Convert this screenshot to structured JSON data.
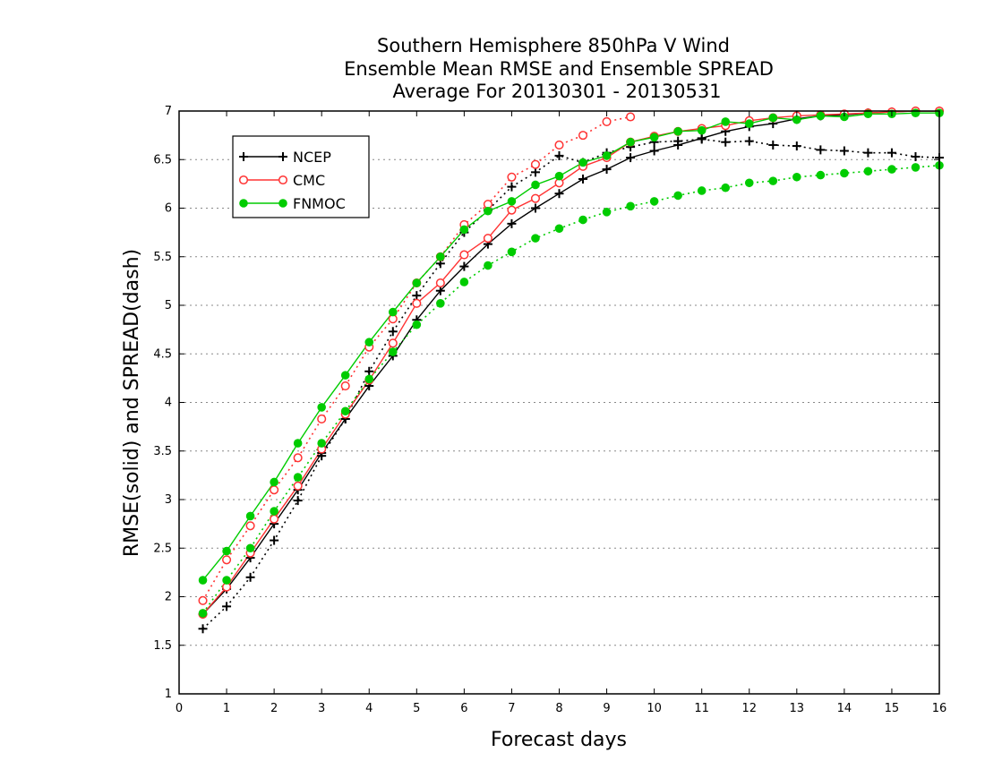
{
  "chart_data": {
    "type": "line",
    "title_lines": [
      "Southern Hemisphere 850hPa V Wind",
      "Ensemble Mean RMSE and Ensemble SPREAD",
      "Average For 20130301 - 20130531"
    ],
    "xlabel": "Forecast days",
    "ylabel": "RMSE(solid) and SPREAD(dash)",
    "xlim": [
      0,
      16
    ],
    "ylim": [
      1,
      7
    ],
    "x_ticks": [
      "0",
      "1",
      "2",
      "3",
      "4",
      "5",
      "6",
      "7",
      "8",
      "9",
      "10",
      "11",
      "12",
      "13",
      "14",
      "15",
      "16"
    ],
    "y_ticks": [
      "1",
      "1.5",
      "2",
      "2.5",
      "3",
      "3.5",
      "4",
      "4.5",
      "5",
      "5.5",
      "6",
      "6.5",
      "7"
    ],
    "grid": "horizontal dotted",
    "legend_position": "top-left",
    "x": [
      0.5,
      1,
      1.5,
      2,
      2.5,
      3,
      3.5,
      4,
      4.5,
      5,
      5.5,
      6,
      6.5,
      7,
      7.5,
      8,
      8.5,
      9,
      9.5,
      10,
      10.5,
      11,
      11.5,
      12,
      12.5,
      13,
      13.5,
      14,
      14.5,
      15,
      15.5,
      16
    ],
    "series": [
      {
        "name": "NCEP",
        "color": "#000000",
        "marker": "plus",
        "rmse": [
          1.82,
          2.08,
          2.4,
          2.75,
          3.1,
          3.48,
          3.83,
          4.17,
          4.48,
          4.85,
          5.15,
          5.4,
          5.63,
          5.84,
          6.0,
          6.15,
          6.3,
          6.4,
          6.52,
          6.59,
          6.65,
          6.72,
          6.79,
          6.84,
          6.87,
          6.92,
          6.95,
          6.96,
          6.98,
          6.99,
          7.0,
          7.0
        ],
        "spread": [
          1.67,
          1.9,
          2.2,
          2.58,
          2.99,
          3.45,
          3.83,
          4.32,
          4.73,
          5.1,
          5.43,
          5.75,
          5.98,
          6.22,
          6.37,
          6.54,
          6.47,
          6.57,
          6.63,
          6.68,
          6.69,
          6.71,
          6.68,
          6.69,
          6.65,
          6.64,
          6.6,
          6.59,
          6.57,
          6.57,
          6.53,
          6.52
        ]
      },
      {
        "name": "CMC",
        "color": "#ff3333",
        "marker": "open-circle",
        "rmse": [
          1.82,
          2.1,
          2.45,
          2.8,
          3.14,
          3.52,
          3.88,
          4.23,
          4.61,
          5.02,
          5.23,
          5.52,
          5.69,
          5.98,
          6.1,
          6.26,
          6.43,
          6.52,
          6.68,
          6.74,
          6.79,
          6.82,
          6.85,
          6.9,
          6.93,
          6.95,
          6.96,
          6.97,
          6.98,
          6.99,
          7.0,
          7.0
        ],
        "spread": [
          1.96,
          2.38,
          2.73,
          3.1,
          3.43,
          3.83,
          4.17,
          4.57,
          4.86,
          5.23,
          5.5,
          5.83,
          6.04,
          6.32,
          6.45,
          6.65,
          6.75,
          6.89,
          6.94
        ]
      },
      {
        "name": "FNMOC",
        "color": "#00cc00",
        "marker": "filled-circle",
        "rmse": [
          2.17,
          2.47,
          2.83,
          3.18,
          3.58,
          3.95,
          4.28,
          4.62,
          4.93,
          5.23,
          5.5,
          5.78,
          5.97,
          6.07,
          6.24,
          6.33,
          6.47,
          6.54,
          6.68,
          6.73,
          6.79,
          6.8,
          6.89,
          6.87,
          6.93,
          6.91,
          6.95,
          6.94,
          6.97,
          6.97,
          6.98,
          6.98
        ],
        "spread": [
          1.83,
          2.17,
          2.5,
          2.88,
          3.23,
          3.58,
          3.91,
          4.24,
          4.52,
          4.8,
          5.02,
          5.24,
          5.41,
          5.55,
          5.69,
          5.79,
          5.88,
          5.96,
          6.02,
          6.07,
          6.13,
          6.18,
          6.21,
          6.26,
          6.28,
          6.32,
          6.34,
          6.36,
          6.38,
          6.4,
          6.42,
          6.44
        ]
      }
    ]
  }
}
